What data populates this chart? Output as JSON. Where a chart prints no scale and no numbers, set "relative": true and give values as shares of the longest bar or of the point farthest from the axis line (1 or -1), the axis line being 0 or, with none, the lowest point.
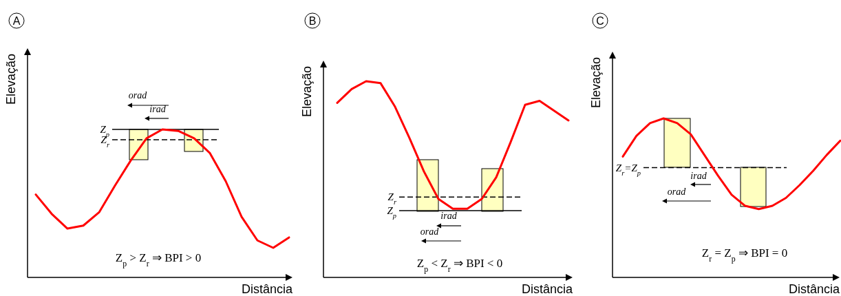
{
  "chart_data": [
    {
      "type": "line",
      "title": "A",
      "xlabel": "Distância",
      "ylabel": "Elevação",
      "relative": true,
      "categories": [
        null,
        null,
        null,
        null,
        null,
        null,
        null,
        null,
        null,
        null,
        null,
        null,
        null,
        null,
        null,
        null,
        null
      ],
      "series": [
        {
          "color": "#ff0000",
          "values": [
            0.56,
            0.43,
            0.33,
            0.35,
            0.44,
            0.62,
            0.79,
            0.94,
            1.0,
            0.99,
            0.94,
            0.84,
            0.65,
            0.41,
            0.25,
            0.2,
            0.27
          ]
        }
      ],
      "ref_lines": [
        {
          "axis": "y",
          "value": 1.0,
          "label": "Z$_{p}$",
          "line_style": "solid",
          "color": "#000000"
        },
        {
          "axis": "y",
          "value": 0.93,
          "label": "Z$_{r}$",
          "line_style": "dashed",
          "color": "#000000"
        }
      ],
      "annotations": [
        "Z$_{p}$ > Z$_{r}$ ⇒ BPI > 0",
        "orad",
        "irad"
      ]
    },
    {
      "type": "line",
      "title": "B",
      "xlabel": "Distância",
      "ylabel": "Elevação",
      "relative": true,
      "categories": [
        null,
        null,
        null,
        null,
        null,
        null,
        null,
        null,
        null,
        null,
        null,
        null,
        null,
        null,
        null,
        null,
        null
      ],
      "series": [
        {
          "color": "#ff0000",
          "values": [
            0.89,
            0.96,
            1.0,
            0.99,
            0.87,
            0.71,
            0.54,
            0.4,
            0.35,
            0.35,
            0.4,
            0.51,
            0.69,
            0.88,
            0.9,
            0.85,
            0.8
          ]
        }
      ],
      "ref_lines": [
        {
          "axis": "y",
          "value": 0.41,
          "label": "Z$_{r}$",
          "line_style": "dashed",
          "color": "#000000"
        },
        {
          "axis": "y",
          "value": 0.34,
          "label": "Z$_{p}$",
          "line_style": "solid",
          "color": "#000000"
        }
      ],
      "annotations": [
        "Z$_{p}$ < Z$_{r}$ ⇒ BPI < 0",
        "orad",
        "irad"
      ]
    },
    {
      "type": "line",
      "title": "C",
      "xlabel": "Distância",
      "ylabel": "Elevação",
      "relative": true,
      "categories": [
        null,
        null,
        null,
        null,
        null,
        null,
        null,
        null,
        null,
        null,
        null,
        null,
        null,
        null,
        null,
        null,
        null
      ],
      "series": [
        {
          "color": "#ff0000",
          "values": [
            0.76,
            0.89,
            0.97,
            1.0,
            0.97,
            0.9,
            0.77,
            0.64,
            0.52,
            0.45,
            0.43,
            0.45,
            0.5,
            0.58,
            0.67,
            0.77,
            0.86
          ]
        }
      ],
      "ref_lines": [
        {
          "axis": "y",
          "value": 0.69,
          "label": "Z$_{r}$=Z$_{p}$",
          "line_style": "dashed",
          "color": "#000000"
        }
      ],
      "annotations": [
        "Z$_{r}$ = Z$_{p}$ ⇒ BPI = 0",
        "orad",
        "irad"
      ]
    }
  ]
}
